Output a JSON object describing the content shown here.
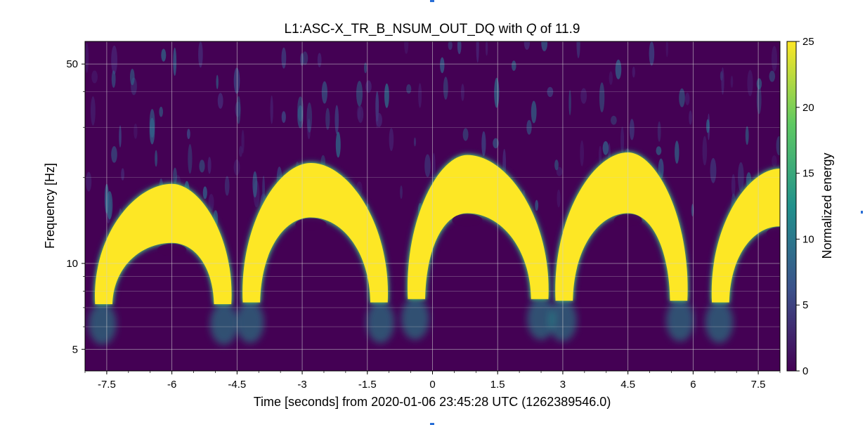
{
  "chart_data": {
    "type": "heatmap",
    "title_parts": {
      "pre": "L1:ASC-X_TR_B_NSUM_OUT_DQ with ",
      "q": "Q",
      "post": " of 11.9"
    },
    "xlabel": "Time [seconds] from 2020-01-06 23:45:28 UTC (1262389546.0)",
    "ylabel": "Frequency [Hz]",
    "colorbar_label": "Normalized energy",
    "xlim": [
      -8,
      8
    ],
    "ylim": [
      4.2,
      60
    ],
    "y_scale": "log",
    "x_ticks": [
      -7.5,
      -6,
      -4.5,
      -3,
      -1.5,
      0,
      1.5,
      3,
      4.5,
      6,
      7.5
    ],
    "x_tick_labels": [
      "-7.5",
      "-6",
      "-4.5",
      "-3",
      "-1.5",
      "0",
      "1.5",
      "3",
      "4.5",
      "6",
      "7.5"
    ],
    "y_ticks": [
      5,
      10,
      50
    ],
    "y_tick_labels": [
      "5",
      "10",
      "50"
    ],
    "colorbar_range": [
      0,
      25
    ],
    "colorbar_ticks": [
      0,
      5,
      10,
      15,
      20,
      25
    ],
    "colorbar_tick_labels": [
      "0",
      "5",
      "10",
      "15",
      "20",
      "25"
    ],
    "colormap": [
      "#440154",
      "#3b528b",
      "#21918c",
      "#5ec962",
      "#fde725"
    ],
    "grid": true,
    "arches": [
      {
        "left_x": -7.6,
        "peak_x": -6.0,
        "right_x": -4.8,
        "base_y": 7.2,
        "top_y": 19.0,
        "inner_top_y": 11.8
      },
      {
        "left_x": -4.2,
        "peak_x": -2.8,
        "right_x": -1.2,
        "base_y": 7.3,
        "top_y": 22.5,
        "inner_top_y": 14.5
      },
      {
        "left_x": -0.4,
        "peak_x": 0.8,
        "right_x": 2.5,
        "base_y": 7.5,
        "top_y": 24.0,
        "inner_top_y": 15.0
      },
      {
        "left_x": 3.0,
        "peak_x": 4.5,
        "right_x": 5.7,
        "base_y": 7.4,
        "top_y": 24.5,
        "inner_top_y": 15.0
      },
      {
        "left_x": 6.6,
        "peak_x": 8.0,
        "right_x": 9.2,
        "base_y": 7.3,
        "top_y": 21.5,
        "inner_top_y": 13.5
      }
    ]
  }
}
